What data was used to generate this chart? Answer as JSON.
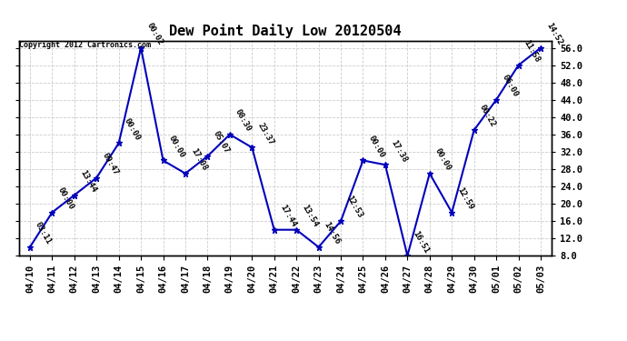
{
  "title": "Dew Point Daily Low 20120504",
  "copyright_text": "Copyright 2012 Cartronics.com",
  "x_labels": [
    "04/10",
    "04/11",
    "04/12",
    "04/13",
    "04/14",
    "04/15",
    "04/16",
    "04/17",
    "04/18",
    "04/19",
    "04/20",
    "04/21",
    "04/22",
    "04/23",
    "04/24",
    "04/25",
    "04/26",
    "04/27",
    "04/28",
    "04/29",
    "04/30",
    "05/01",
    "05/02",
    "05/03"
  ],
  "y_values": [
    10,
    18,
    22,
    26,
    34,
    56,
    30,
    27,
    31,
    36,
    33,
    14,
    14,
    10,
    16,
    30,
    29,
    8,
    27,
    18,
    37,
    44,
    52,
    56
  ],
  "point_labels": [
    "03:11",
    "00:00",
    "13:44",
    "09:47",
    "00:00",
    "00:02",
    "00:00",
    "17:08",
    "05:07",
    "08:30",
    "23:37",
    "17:44",
    "13:54",
    "14:56",
    "12:53",
    "00:00",
    "17:38",
    "16:51",
    "00:00",
    "12:59",
    "00:22",
    "06:00",
    "11:58",
    "14:52"
  ],
  "ylim_min": 8.0,
  "ylim_max": 57.6,
  "ytick_values": [
    8.0,
    12.0,
    16.0,
    20.0,
    24.0,
    28.0,
    32.0,
    36.0,
    40.0,
    44.0,
    48.0,
    52.0,
    56.0
  ],
  "line_color": "#0000bb",
  "marker_color": "#0000bb",
  "grid_color": "#cccccc",
  "bg_color": "#ffffff",
  "title_fontsize": 11,
  "annotation_fontsize": 6.5,
  "tick_fontsize": 7.5
}
